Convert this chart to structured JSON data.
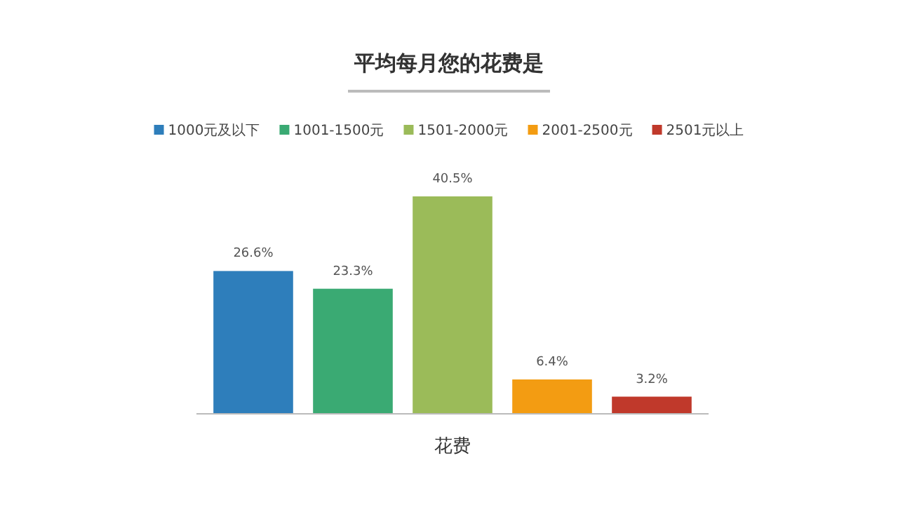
{
  "chart_data": {
    "type": "bar",
    "title": "平均每月您的花费是",
    "xlabel": "花费",
    "legend": "top",
    "categories": [
      null
    ],
    "series": [
      {
        "name": "1000元及以下",
        "color": "#2e7ebb",
        "values": [
          26.6
        ],
        "value_labels": [
          "26.6%"
        ]
      },
      {
        "name": "1001-1500元",
        "color": "#3aaa73",
        "values": [
          23.3
        ],
        "value_labels": [
          "23.3%"
        ]
      },
      {
        "name": "1501-2000元",
        "color": "#9bbb59",
        "values": [
          40.5
        ],
        "value_labels": [
          "40.5%"
        ]
      },
      {
        "name": "2001-2500元",
        "color": "#f39c12",
        "values": [
          6.4
        ],
        "value_labels": [
          "6.4%"
        ]
      },
      {
        "name": "2501元以上",
        "color": "#c0392b",
        "values": [
          3.2
        ],
        "value_labels": [
          "3.2%"
        ]
      }
    ]
  }
}
